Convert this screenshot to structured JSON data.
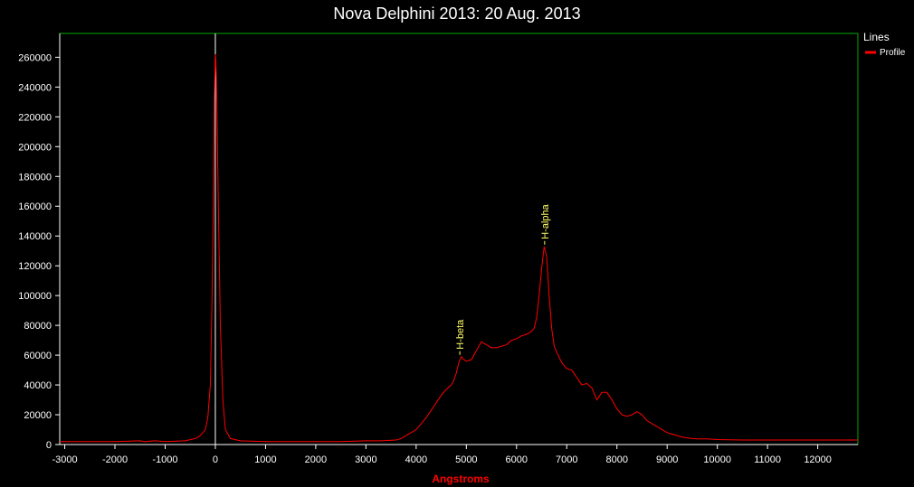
{
  "chart_data": {
    "type": "line",
    "title": "Nova Delphini 2013: 20 Aug. 2013",
    "xlabel": "Angstroms",
    "ylabel": "",
    "xlim": [
      -3100,
      12800
    ],
    "ylim": [
      0,
      276000
    ],
    "x_ticks": [
      -3000,
      -2000,
      -1000,
      0,
      1000,
      2000,
      3000,
      4000,
      5000,
      6000,
      7000,
      8000,
      9000,
      10000,
      11000,
      12000
    ],
    "y_ticks": [
      0,
      20000,
      40000,
      60000,
      80000,
      100000,
      120000,
      140000,
      160000,
      180000,
      200000,
      220000,
      240000,
      260000
    ],
    "grid": false,
    "legend": {
      "title": "Lines",
      "position": "right"
    },
    "reference_line_x": 0,
    "colors": {
      "series": "#ff0000",
      "frame": "#00aa00",
      "axis": "#ffffff",
      "annotation": "#ffff66",
      "xlabel": "#ff0000"
    },
    "series": [
      {
        "name": "Profile",
        "x": [
          -3100,
          -2500,
          -2000,
          -1500,
          -1400,
          -1200,
          -1000,
          -600,
          -400,
          -300,
          -200,
          -150,
          -100,
          -70,
          -40,
          -20,
          0,
          10,
          30,
          60,
          100,
          150,
          200,
          300,
          500,
          1000,
          1500,
          2000,
          2500,
          3000,
          3300,
          3600,
          3700,
          3800,
          3900,
          4000,
          4100,
          4200,
          4300,
          4400,
          4500,
          4600,
          4700,
          4750,
          4800,
          4850,
          4900,
          4950,
          5000,
          5100,
          5200,
          5300,
          5400,
          5500,
          5600,
          5700,
          5800,
          5900,
          6000,
          6100,
          6200,
          6300,
          6350,
          6400,
          6450,
          6500,
          6550,
          6600,
          6650,
          6700,
          6750,
          6800,
          6900,
          7000,
          7100,
          7200,
          7300,
          7400,
          7500,
          7600,
          7700,
          7800,
          7900,
          8000,
          8100,
          8200,
          8300,
          8400,
          8500,
          8600,
          8700,
          8800,
          8900,
          9000,
          9100,
          9200,
          9300,
          9400,
          9500,
          9600,
          9800,
          10000,
          10500,
          11000,
          11500,
          12000,
          12800
        ],
        "y": [
          2000,
          2000,
          2000,
          2500,
          2000,
          2500,
          2000,
          2500,
          4000,
          6000,
          10000,
          18000,
          40000,
          90000,
          160000,
          230000,
          262000,
          258000,
          230000,
          160000,
          80000,
          30000,
          10000,
          4000,
          2500,
          2000,
          2000,
          2000,
          2000,
          2500,
          2500,
          3000,
          4000,
          6000,
          8000,
          10000,
          14000,
          18000,
          23000,
          28000,
          33000,
          37000,
          40000,
          43000,
          48000,
          55000,
          59000,
          57000,
          56000,
          57000,
          63000,
          69000,
          67000,
          65000,
          65000,
          66000,
          67000,
          70000,
          71000,
          73000,
          74000,
          76000,
          78000,
          85000,
          100000,
          118000,
          133000,
          126000,
          100000,
          78000,
          66000,
          62000,
          55000,
          51000,
          50000,
          45000,
          40000,
          41000,
          38000,
          30000,
          35000,
          35000,
          30000,
          24000,
          20000,
          19000,
          20000,
          22000,
          20000,
          16000,
          14000,
          12000,
          10000,
          8000,
          7000,
          6000,
          5000,
          4500,
          4000,
          3800,
          3800,
          3300,
          3000,
          3000,
          3000,
          3000,
          3000
        ]
      }
    ],
    "annotations": [
      {
        "text": "H-beta",
        "x": 4870,
        "y": 59000
      },
      {
        "text": "H-alpha",
        "x": 6560,
        "y": 133000
      }
    ]
  }
}
